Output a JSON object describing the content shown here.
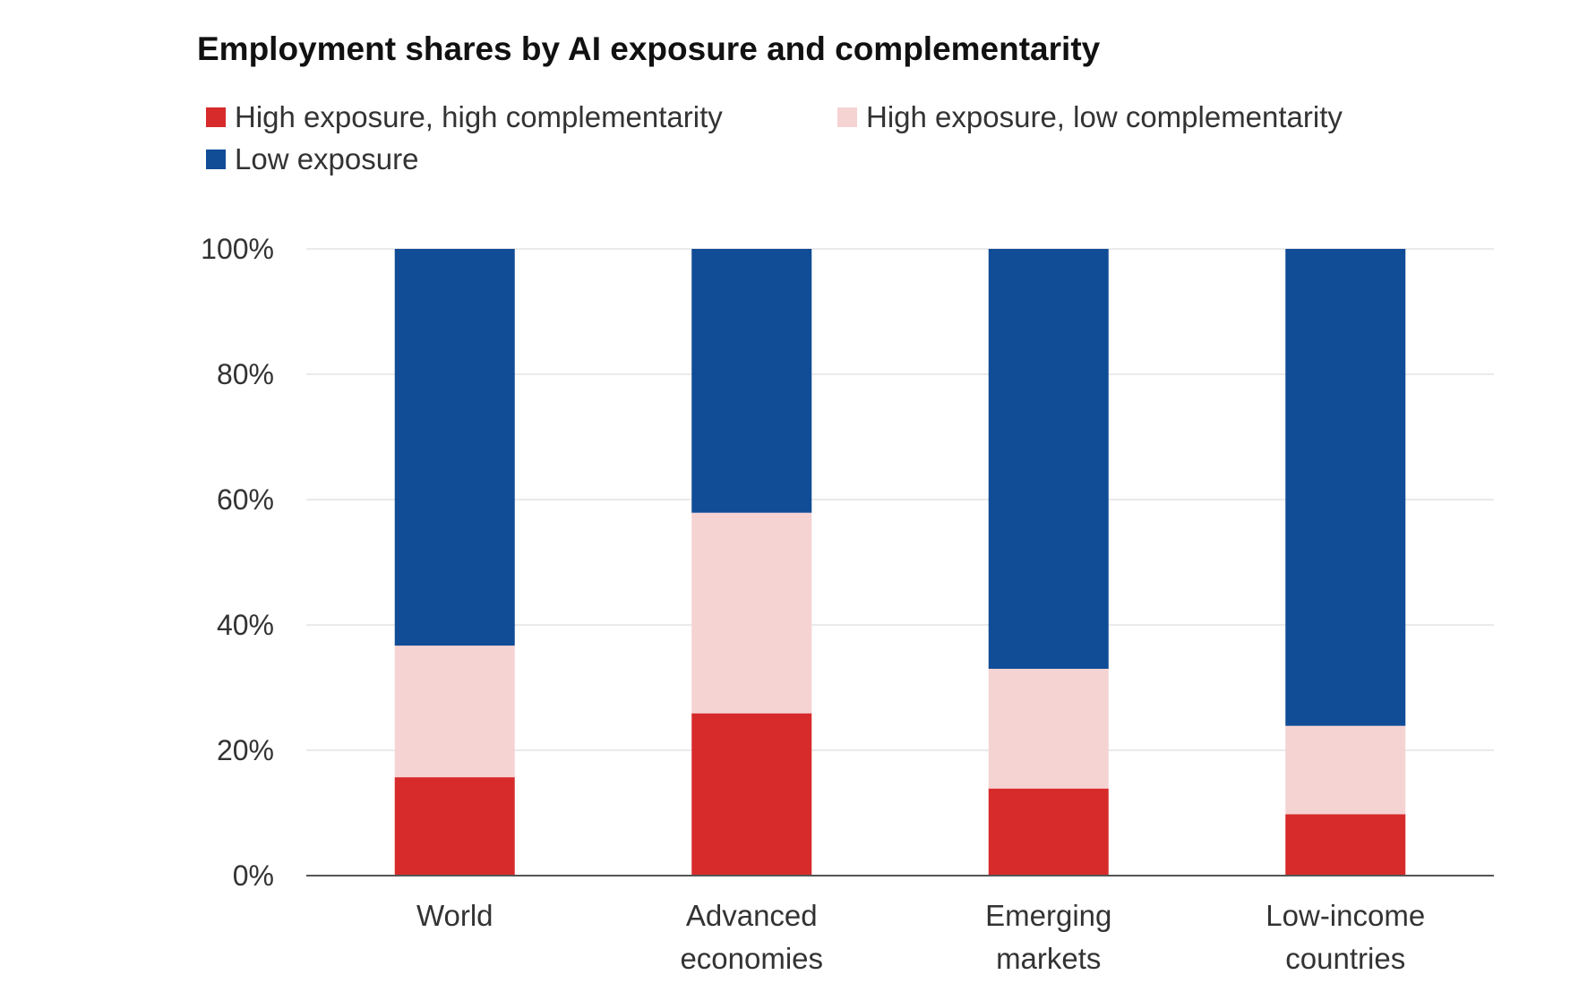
{
  "chart_data": {
    "type": "bar",
    "stacked": true,
    "title": "Employment shares by AI exposure and complementarity",
    "categories": [
      [
        "World"
      ],
      [
        "Advanced",
        "economies"
      ],
      [
        "Emerging",
        "markets"
      ],
      [
        "Low-income",
        "countries"
      ]
    ],
    "series": [
      {
        "name": "High exposure, high complementarity",
        "color": "#d72b2b",
        "values": [
          15.7,
          25.9,
          13.9,
          9.8
        ]
      },
      {
        "name": "High exposure, low complementarity",
        "color": "#f6d3d3",
        "values": [
          21.0,
          32.0,
          19.1,
          14.1
        ]
      },
      {
        "name": "Low exposure",
        "color": "#114c96",
        "values": [
          63.3,
          42.1,
          67.0,
          76.1
        ]
      }
    ],
    "ylim": [
      0,
      100
    ],
    "yticks": [
      "0%",
      "20%",
      "40%",
      "60%",
      "80%",
      "100%"
    ],
    "ytick_values": [
      0,
      20,
      40,
      60,
      80,
      100
    ],
    "xlabel": "",
    "ylabel": "",
    "grid": true,
    "legend_position": "top-left"
  }
}
